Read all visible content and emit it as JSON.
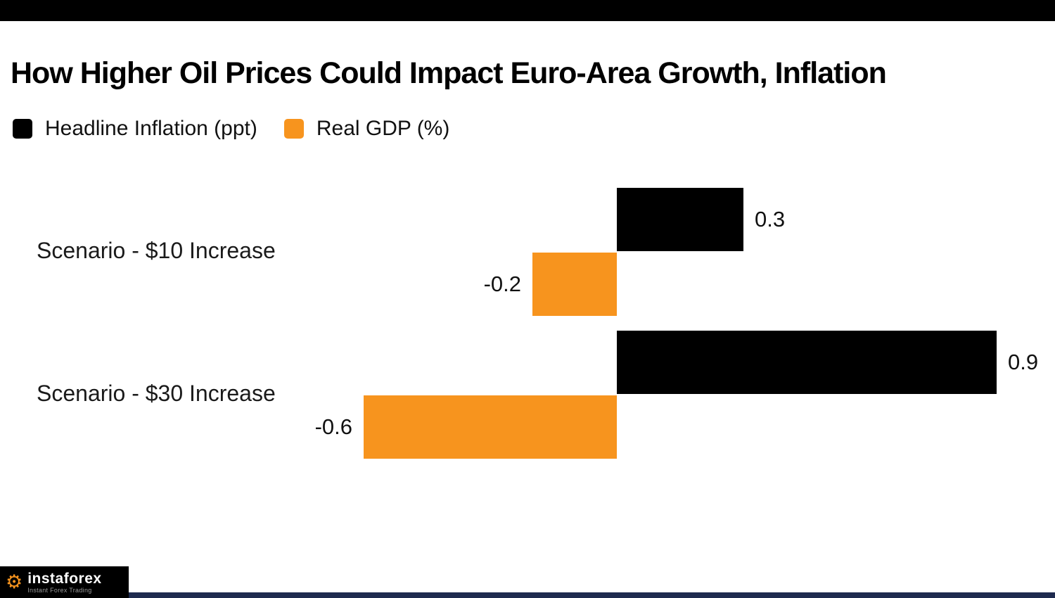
{
  "top_bar": {
    "color": "#000000"
  },
  "header": {
    "title": "How Higher Oil Prices Could Impact Euro-Area Growth, Inflation"
  },
  "legend": {
    "items": [
      {
        "label": "Headline Inflation (ppt)",
        "color": "#000000"
      },
      {
        "label": "Real GDP (%)",
        "color": "#F7941E"
      }
    ]
  },
  "chart_data": {
    "type": "bar",
    "orientation": "horizontal",
    "title": "How Higher Oil Prices Could Impact Euro-Area Growth, Inflation",
    "categories": [
      "Scenario - $10 Increase",
      "Scenario - $30 Increase"
    ],
    "series": [
      {
        "name": "Headline Inflation (ppt)",
        "color": "#000000",
        "values": [
          0.3,
          0.9
        ],
        "labels": [
          "0.3",
          "0.9"
        ]
      },
      {
        "name": "Real GDP (%)",
        "color": "#F7941E",
        "values": [
          -0.2,
          -0.6
        ],
        "labels": [
          "-0.2",
          "-0.6"
        ]
      }
    ],
    "xlim": [
      -0.7,
      1.05
    ],
    "baseline": 0,
    "grid": false,
    "legend_position": "top-left",
    "value_labels_shown": true
  },
  "footer": {
    "bar_color": "#1E2B4F",
    "logo": {
      "brand": "instaforex",
      "tagline": "Instant Forex Trading",
      "gear_icon": "gear",
      "gear_icon_color": "#F7941E"
    }
  }
}
